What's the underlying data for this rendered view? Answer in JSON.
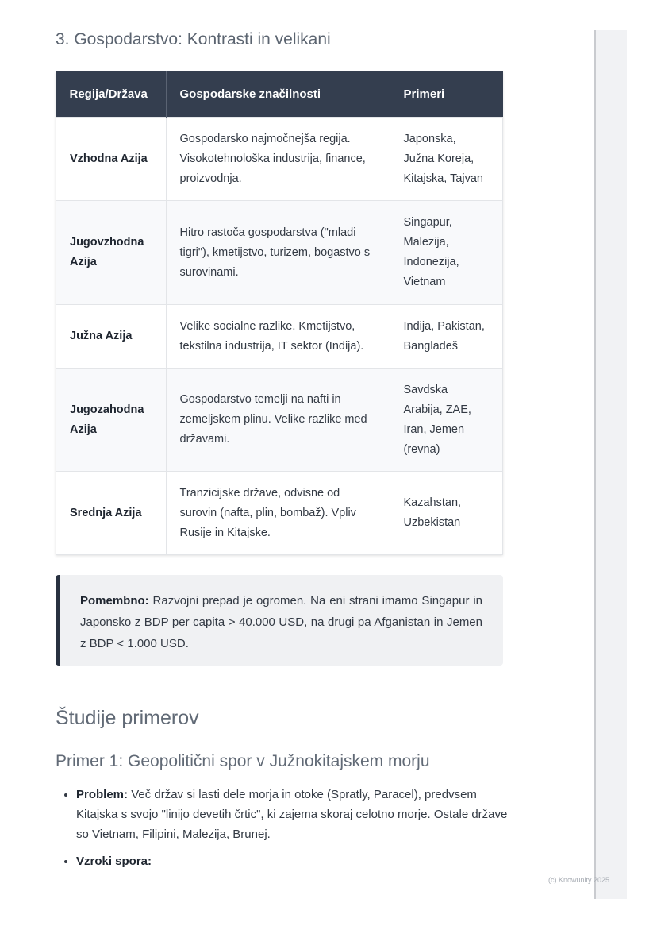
{
  "section_title": "3. Gospodarstvo: Kontrasti in velikani",
  "table": {
    "headers": [
      "Regija/Država",
      "Gospodarske značilnosti",
      "Primeri"
    ],
    "rows": [
      [
        "Vzhodna Azija",
        "Gospodarsko najmočnejša regija. Visokotehnološka industrija, finance, proizvodnja.",
        "Japonska, Južna Koreja, Kitajska, Tajvan"
      ],
      [
        "Jugovzhodna Azija",
        "Hitro rastoča gospodarstva (\"mladi tigri\"), kmetijstvo, turizem, bogastvo s surovinami.",
        "Singapur, Malezija, Indonezija, Vietnam"
      ],
      [
        "Južna Azija",
        "Velike socialne razlike. Kmetijstvo, tekstilna industrija, IT sektor (Indija).",
        "Indija, Pakistan, Bangladeš"
      ],
      [
        "Jugozahodna Azija",
        "Gospodarstvo temelji na nafti in zemeljskem plinu. Velike razlike med državami.",
        "Savdska Arabija, ZAE, Iran, Jemen (revna)"
      ],
      [
        "Srednja Azija",
        "Tranzicijske države, odvisne od surovin (nafta, plin, bombaž). Vpliv Rusije in Kitajske.",
        "Kazahstan, Uzbekistan"
      ]
    ]
  },
  "callout": {
    "label": "Pomembno:",
    "text": "Razvojni prepad je ogromen. Na eni strani imamo Singapur in Japonsko z BDP per capita > 40.000 USD, na drugi pa Afganistan in Jemen z BDP < 1.000 USD."
  },
  "case_studies_title": "Študije primerov",
  "case1": {
    "title": "Primer 1: Geopolitični spor v Južnokitajskem morju",
    "items": [
      {
        "label": "Problem:",
        "text": "Več držav si lasti dele morja in otoke (Spratly, Paracel), predvsem Kitajska s svojo \"linijo devetih črtic\", ki zajema skoraj celotno morje. Ostale države so Vietnam, Filipini, Malezija, Brunej."
      },
      {
        "label": "Vzroki spora:",
        "text": ""
      }
    ]
  },
  "footer": "(c) Knowunity 2025"
}
